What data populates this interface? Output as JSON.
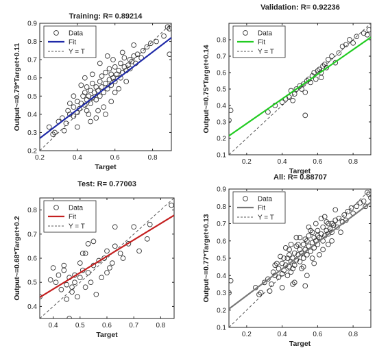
{
  "figure": {
    "background": "#ffffff",
    "marker_color": "#333333",
    "identity_color": "#555555"
  },
  "chart_data": [
    {
      "type": "scatter",
      "title": "Training: R= 0.89214",
      "xlabel": "Target",
      "ylabel": "Output~=0.79*Target+0.11",
      "xlim": [
        0.2,
        0.9
      ],
      "ylim": [
        0.2,
        0.9
      ],
      "xticks": [
        "0.2",
        "0.4",
        "0.6",
        "0.8"
      ],
      "xtick_values": [
        0.2,
        0.4,
        0.6,
        0.8
      ],
      "yticks": [
        "0.2",
        "0.3",
        "0.4",
        "0.5",
        "0.6",
        "0.7",
        "0.8",
        "0.9"
      ],
      "ytick_values": [
        0.2,
        0.3,
        0.4,
        0.5,
        0.6,
        0.7,
        0.8,
        0.9
      ],
      "fit": {
        "slope": 0.79,
        "intercept": 0.11,
        "color": "#1f2aa8"
      },
      "legend": {
        "entries": [
          "Data",
          "Fit",
          "Y = T"
        ],
        "position": "top-left"
      },
      "points": {
        "x": [
          0.25,
          0.28,
          0.3,
          0.32,
          0.34,
          0.35,
          0.36,
          0.38,
          0.38,
          0.4,
          0.4,
          0.41,
          0.42,
          0.43,
          0.44,
          0.44,
          0.45,
          0.45,
          0.46,
          0.47,
          0.47,
          0.48,
          0.48,
          0.49,
          0.5,
          0.5,
          0.51,
          0.52,
          0.52,
          0.53,
          0.53,
          0.54,
          0.55,
          0.55,
          0.56,
          0.57,
          0.57,
          0.58,
          0.58,
          0.59,
          0.6,
          0.6,
          0.61,
          0.62,
          0.63,
          0.63,
          0.64,
          0.65,
          0.65,
          0.66,
          0.67,
          0.68,
          0.68,
          0.69,
          0.7,
          0.71,
          0.72,
          0.74,
          0.75,
          0.77,
          0.79,
          0.82,
          0.86,
          0.88,
          0.89,
          0.48,
          0.52,
          0.56,
          0.6,
          0.42,
          0.38,
          0.46,
          0.54,
          0.62,
          0.66,
          0.5,
          0.44,
          0.58,
          0.4,
          0.36,
          0.64,
          0.7,
          0.55,
          0.51,
          0.47,
          0.59,
          0.45,
          0.33,
          0.27,
          0.89,
          0.9
        ],
        "y": [
          0.33,
          0.3,
          0.36,
          0.38,
          0.35,
          0.42,
          0.4,
          0.39,
          0.44,
          0.41,
          0.47,
          0.43,
          0.46,
          0.5,
          0.45,
          0.52,
          0.48,
          0.42,
          0.5,
          0.53,
          0.46,
          0.49,
          0.57,
          0.52,
          0.55,
          0.48,
          0.53,
          0.58,
          0.5,
          0.55,
          0.61,
          0.52,
          0.57,
          0.63,
          0.54,
          0.59,
          0.65,
          0.56,
          0.62,
          0.6,
          0.58,
          0.66,
          0.62,
          0.64,
          0.6,
          0.68,
          0.63,
          0.66,
          0.71,
          0.64,
          0.67,
          0.7,
          0.65,
          0.69,
          0.72,
          0.68,
          0.73,
          0.71,
          0.75,
          0.77,
          0.79,
          0.8,
          0.83,
          0.88,
          0.87,
          0.62,
          0.68,
          0.72,
          0.52,
          0.56,
          0.5,
          0.4,
          0.44,
          0.54,
          0.58,
          0.38,
          0.6,
          0.47,
          0.33,
          0.46,
          0.74,
          0.78,
          0.4,
          0.42,
          0.36,
          0.7,
          0.55,
          0.31,
          0.29,
          0.73,
          0.88
        ]
      }
    },
    {
      "type": "scatter",
      "title": "Validation: R= 0.92236",
      "xlabel": "Target",
      "ylabel": "Output~=0.75*Target+0.14",
      "xlim": [
        0.1,
        0.9
      ],
      "ylim": [
        0.1,
        0.9
      ],
      "xticks": [
        "0.2",
        "0.4",
        "0.6",
        "0.8"
      ],
      "xtick_values": [
        0.2,
        0.4,
        0.6,
        0.8
      ],
      "yticks": [
        "0.1",
        "0.2",
        "0.3",
        "0.4",
        "0.5",
        "0.6",
        "0.7",
        "0.8"
      ],
      "ytick_values": [
        0.1,
        0.2,
        0.3,
        0.4,
        0.5,
        0.6,
        0.7,
        0.8
      ],
      "fit": {
        "slope": 0.75,
        "intercept": 0.14,
        "color": "#22cc22"
      },
      "legend": {
        "entries": [
          "Data",
          "Fit",
          "Y = T"
        ],
        "position": "top-left"
      },
      "points": {
        "x": [
          0.1,
          0.11,
          0.32,
          0.36,
          0.4,
          0.42,
          0.44,
          0.45,
          0.47,
          0.48,
          0.5,
          0.51,
          0.52,
          0.53,
          0.54,
          0.55,
          0.56,
          0.57,
          0.58,
          0.59,
          0.6,
          0.61,
          0.62,
          0.63,
          0.64,
          0.65,
          0.66,
          0.68,
          0.7,
          0.72,
          0.74,
          0.76,
          0.78,
          0.8,
          0.82,
          0.86,
          0.88,
          0.89,
          0.53,
          0.46,
          0.62
        ],
        "y": [
          0.31,
          0.37,
          0.36,
          0.4,
          0.42,
          0.44,
          0.45,
          0.49,
          0.47,
          0.5,
          0.52,
          0.5,
          0.53,
          0.48,
          0.55,
          0.56,
          0.54,
          0.58,
          0.6,
          0.56,
          0.61,
          0.62,
          0.6,
          0.64,
          0.65,
          0.63,
          0.68,
          0.7,
          0.66,
          0.72,
          0.76,
          0.77,
          0.8,
          0.78,
          0.82,
          0.84,
          0.83,
          0.86,
          0.34,
          0.43,
          0.57
        ]
      }
    },
    {
      "type": "scatter",
      "title": "Test: R= 0.77003",
      "xlabel": "Target",
      "ylabel": "Output~=0.68*Target+0.2",
      "xlim": [
        0.35,
        0.85
      ],
      "ylim": [
        0.35,
        0.85
      ],
      "xticks": [
        "0.4",
        "0.5",
        "0.6",
        "0.7",
        "0.8"
      ],
      "xtick_values": [
        0.4,
        0.5,
        0.6,
        0.7,
        0.8
      ],
      "yticks": [
        "0.4",
        "0.5",
        "0.6",
        "0.7",
        "0.8"
      ],
      "ytick_values": [
        0.4,
        0.5,
        0.6,
        0.7,
        0.8
      ],
      "fit": {
        "slope": 0.68,
        "intercept": 0.2,
        "color": "#c42020"
      },
      "legend": {
        "entries": [
          "Data",
          "Fit",
          "Y = T"
        ],
        "position": "top-left"
      },
      "points": {
        "x": [
          0.35,
          0.39,
          0.4,
          0.41,
          0.42,
          0.43,
          0.44,
          0.45,
          0.45,
          0.46,
          0.46,
          0.47,
          0.48,
          0.48,
          0.49,
          0.5,
          0.5,
          0.51,
          0.52,
          0.52,
          0.53,
          0.53,
          0.54,
          0.55,
          0.55,
          0.56,
          0.57,
          0.58,
          0.59,
          0.6,
          0.6,
          0.61,
          0.62,
          0.63,
          0.63,
          0.65,
          0.66,
          0.68,
          0.7,
          0.72,
          0.75,
          0.76,
          0.84,
          0.44,
          0.47,
          0.51
        ],
        "y": [
          0.44,
          0.51,
          0.56,
          0.5,
          0.53,
          0.47,
          0.55,
          0.49,
          0.43,
          0.52,
          0.35,
          0.48,
          0.5,
          0.53,
          0.44,
          0.58,
          0.52,
          0.55,
          0.62,
          0.48,
          0.66,
          0.54,
          0.5,
          0.67,
          0.57,
          0.45,
          0.59,
          0.52,
          0.6,
          0.54,
          0.63,
          0.56,
          0.58,
          0.65,
          0.73,
          0.62,
          0.6,
          0.66,
          0.73,
          0.63,
          0.68,
          0.74,
          0.82,
          0.57,
          0.46,
          0.62
        ]
      }
    },
    {
      "type": "scatter",
      "title": "All: R= 0.88707",
      "xlabel": "Target",
      "ylabel": "Output~=0.77*Target+0.13",
      "xlim": [
        0.1,
        0.9
      ],
      "ylim": [
        0.1,
        0.9
      ],
      "xticks": [
        "0.2",
        "0.4",
        "0.6",
        "0.8"
      ],
      "xtick_values": [
        0.2,
        0.4,
        0.6,
        0.8
      ],
      "yticks": [
        "0.1",
        "0.2",
        "0.3",
        "0.4",
        "0.5",
        "0.6",
        "0.7",
        "0.8",
        "0.9"
      ],
      "ytick_values": [
        0.1,
        0.2,
        0.3,
        0.4,
        0.5,
        0.6,
        0.7,
        0.8,
        0.9
      ],
      "fit": {
        "slope": 0.77,
        "intercept": 0.13,
        "color": "#777777"
      },
      "legend": {
        "entries": [
          "Data",
          "Fit",
          "Y = T"
        ],
        "position": "top-left"
      },
      "points": {
        "x": [
          0.1,
          0.11,
          0.25,
          0.28,
          0.3,
          0.32,
          0.34,
          0.35,
          0.36,
          0.38,
          0.38,
          0.4,
          0.4,
          0.41,
          0.42,
          0.43,
          0.44,
          0.44,
          0.45,
          0.45,
          0.46,
          0.47,
          0.47,
          0.48,
          0.48,
          0.49,
          0.5,
          0.5,
          0.51,
          0.52,
          0.52,
          0.53,
          0.53,
          0.54,
          0.55,
          0.55,
          0.56,
          0.57,
          0.57,
          0.58,
          0.58,
          0.59,
          0.6,
          0.6,
          0.61,
          0.62,
          0.63,
          0.63,
          0.64,
          0.65,
          0.65,
          0.66,
          0.67,
          0.68,
          0.68,
          0.69,
          0.7,
          0.71,
          0.72,
          0.74,
          0.75,
          0.77,
          0.79,
          0.82,
          0.86,
          0.88,
          0.89,
          0.9,
          0.46,
          0.39,
          0.44,
          0.51,
          0.56,
          0.62,
          0.66,
          0.7,
          0.53,
          0.48,
          0.58,
          0.42,
          0.36,
          0.64,
          0.54,
          0.47,
          0.59,
          0.45,
          0.5,
          0.61,
          0.43,
          0.4,
          0.55,
          0.57,
          0.63,
          0.68,
          0.73,
          0.76,
          0.8,
          0.84,
          0.87,
          0.33,
          0.27,
          0.52,
          0.6,
          0.49,
          0.41,
          0.37,
          0.46,
          0.54,
          0.66
        ],
        "y": [
          0.3,
          0.37,
          0.33,
          0.3,
          0.36,
          0.38,
          0.35,
          0.42,
          0.4,
          0.39,
          0.44,
          0.41,
          0.47,
          0.43,
          0.46,
          0.5,
          0.45,
          0.52,
          0.48,
          0.42,
          0.5,
          0.53,
          0.46,
          0.49,
          0.57,
          0.52,
          0.55,
          0.48,
          0.53,
          0.58,
          0.5,
          0.55,
          0.61,
          0.52,
          0.57,
          0.63,
          0.54,
          0.59,
          0.65,
          0.56,
          0.62,
          0.6,
          0.58,
          0.66,
          0.62,
          0.64,
          0.6,
          0.68,
          0.63,
          0.66,
          0.71,
          0.64,
          0.67,
          0.7,
          0.65,
          0.69,
          0.72,
          0.68,
          0.73,
          0.71,
          0.75,
          0.77,
          0.79,
          0.8,
          0.83,
          0.88,
          0.87,
          0.85,
          0.35,
          0.51,
          0.55,
          0.44,
          0.66,
          0.73,
          0.58,
          0.78,
          0.34,
          0.62,
          0.47,
          0.56,
          0.46,
          0.74,
          0.4,
          0.36,
          0.7,
          0.58,
          0.62,
          0.52,
          0.4,
          0.33,
          0.68,
          0.5,
          0.55,
          0.6,
          0.65,
          0.72,
          0.76,
          0.82,
          0.8,
          0.31,
          0.29,
          0.45,
          0.63,
          0.58,
          0.5,
          0.47,
          0.44,
          0.6,
          0.7
        ]
      }
    }
  ]
}
